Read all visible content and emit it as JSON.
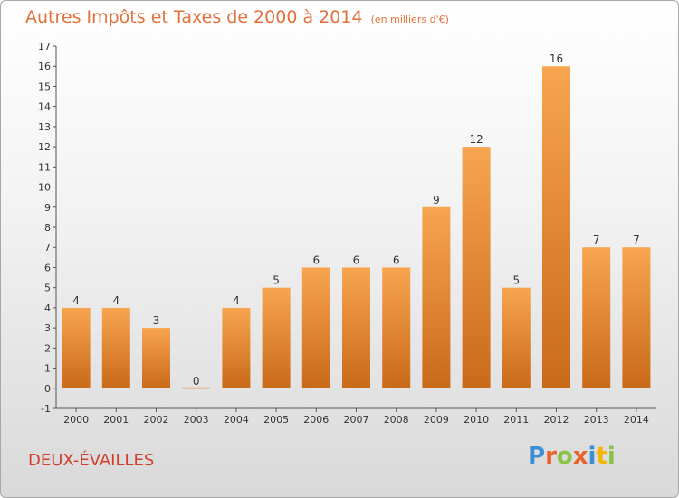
{
  "title": {
    "main": "Autres Impôts et Taxes de 2000 à 2014",
    "unit": "(en milliers d'€)"
  },
  "commune": "DEUX-ÉVAILLES",
  "logo": {
    "text": "Proxiti",
    "letter_colors": [
      "#3a8fd6",
      "#e8622a",
      "#8bc34a",
      "#e8622a",
      "#3a8fd6",
      "#f2b600",
      "#8bc34a"
    ]
  },
  "colors": {
    "bar_top": "#f8a550",
    "bar_bottom": "#c96a18",
    "title": "#e3703a",
    "commune": "#d0402e",
    "axis": "#555555"
  },
  "chart_data": {
    "type": "bar",
    "title": "Autres Impôts et Taxes de 2000 à 2014",
    "xlabel": "",
    "ylabel": "",
    "categories": [
      "2000",
      "2001",
      "2002",
      "2003",
      "2004",
      "2005",
      "2006",
      "2007",
      "2008",
      "2009",
      "2010",
      "2011",
      "2012",
      "2013",
      "2014"
    ],
    "values": [
      4,
      4,
      3,
      0,
      4,
      5,
      6,
      6,
      6,
      9,
      12,
      5,
      16,
      7,
      7
    ],
    "ylim": [
      -1,
      17
    ],
    "yticks": [
      -1,
      0,
      1,
      2,
      3,
      4,
      5,
      6,
      7,
      8,
      9,
      10,
      11,
      12,
      13,
      14,
      15,
      16,
      17
    ],
    "grid": false,
    "legend": "none"
  }
}
